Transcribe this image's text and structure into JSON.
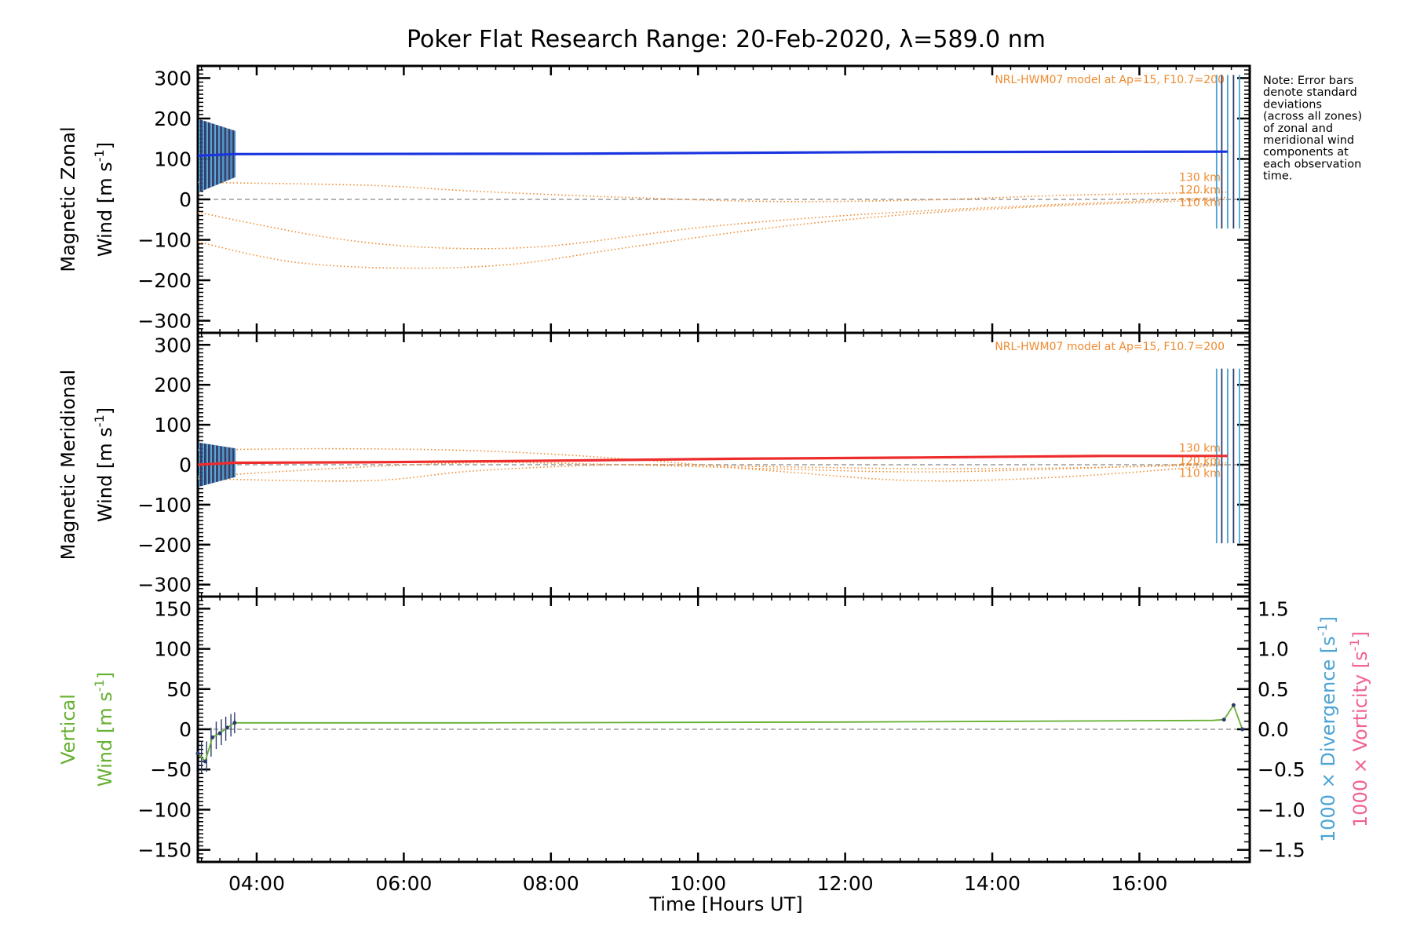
{
  "title": "Poker Flat Research Range: 20-Feb-2020, λ=589.0 nm",
  "colors": {
    "zonal": "#1a35e0",
    "meridional": "#ee2c2c",
    "vertical": "#66b032",
    "model": "#ee8a2e",
    "divergence": "#4aa3d4",
    "vorticity": "#f06292",
    "zero_line": "#888888",
    "error_bars": "#2b3b6b"
  },
  "note_lines": [
    "Note: Error bars",
    "denote standard",
    "deviations",
    "(across all zones)",
    "of zonal and",
    "meridional wind",
    "components at",
    "each observation",
    "time."
  ],
  "x_axis": {
    "label": "Time [Hours UT]",
    "range_hours": [
      3.2,
      17.5
    ],
    "tick_hours": [
      4,
      6,
      8,
      10,
      12,
      14,
      16
    ],
    "tick_labels": [
      "04:00",
      "06:00",
      "08:00",
      "10:00",
      "12:00",
      "14:00",
      "16:00"
    ]
  },
  "chart_data": [
    {
      "type": "line",
      "panel": "zonal",
      "ylabel_line1": "Magnetic Zonal",
      "ylabel_line2": "Wind [m s",
      "ylabel_sup": "-1",
      "ylabel_close": "]",
      "ylim": [
        -330,
        330
      ],
      "yticks": [
        -300,
        -200,
        -100,
        0,
        100,
        200,
        300
      ],
      "ytick_labels": [
        "−300",
        "−200",
        "−100",
        "0",
        "100",
        "200",
        "300"
      ],
      "model_label": "NRL-HWM07 model at Ap=15, F10.7=200",
      "model_alt_labels": [
        "130 km",
        "120 km",
        "110 km"
      ],
      "series": [
        {
          "x": [
            3.2,
            3.7,
            8.2,
            12.7,
            17.2
          ],
          "y": [
            108,
            112,
            113,
            117,
            118
          ]
        }
      ],
      "model_series": [
        {
          "x": [
            3.2,
            5.5,
            7.0,
            9.0,
            11.0,
            13.0,
            15.0,
            17.2
          ],
          "y": [
            42,
            35,
            20,
            5,
            -5,
            -2,
            10,
            18
          ]
        },
        {
          "x": [
            3.2,
            5.0,
            6.5,
            8.0,
            10.0,
            12.0,
            14.0,
            17.2
          ],
          "y": [
            -32,
            -95,
            -120,
            -115,
            -70,
            -40,
            -20,
            5
          ]
        },
        {
          "x": [
            3.2,
            4.5,
            6.0,
            7.5,
            9.0,
            11.0,
            13.0,
            15.0,
            17.2
          ],
          "y": [
            -105,
            -155,
            -170,
            -160,
            -120,
            -70,
            -35,
            -15,
            0
          ]
        }
      ]
    },
    {
      "type": "line",
      "panel": "meridional",
      "ylabel_line1": "Magnetic Meridional",
      "ylabel_line2": "Wind [m s",
      "ylabel_sup": "-1",
      "ylabel_close": "]",
      "ylim": [
        -330,
        330
      ],
      "yticks": [
        -300,
        -200,
        -100,
        0,
        100,
        200,
        300
      ],
      "ytick_labels": [
        "−300",
        "−200",
        "−100",
        "0",
        "100",
        "200",
        "300"
      ],
      "model_label": "NRL-HWM07 model at Ap=15, F10.7=200",
      "model_alt_labels": [
        "130 km",
        "120 km",
        "110 km"
      ],
      "series": [
        {
          "x": [
            3.2,
            3.7,
            5.5,
            8.0,
            10.5,
            13.0,
            15.5,
            17.2
          ],
          "y": [
            0,
            5,
            6,
            10,
            15,
            18,
            22,
            22
          ]
        }
      ],
      "model_series": [
        {
          "x": [
            3.2,
            5.0,
            7.0,
            9.0,
            11.0,
            13.0,
            15.0,
            17.2
          ],
          "y": [
            37,
            40,
            35,
            15,
            -15,
            -40,
            -30,
            0
          ]
        },
        {
          "x": [
            3.2,
            5.0,
            7.0,
            9.0,
            11.0,
            13.0,
            15.0,
            17.2
          ],
          "y": [
            -30,
            -10,
            5,
            0,
            -10,
            -18,
            -10,
            5
          ]
        },
        {
          "x": [
            3.2,
            5.5,
            7.0,
            9.0,
            11.0,
            13.0,
            15.0,
            17.2
          ],
          "y": [
            -35,
            -40,
            -15,
            0,
            -5,
            -10,
            -8,
            0
          ]
        }
      ]
    },
    {
      "type": "line",
      "panel": "vertical",
      "ylabel_line1": "Vertical",
      "ylabel_line2": "Wind [m s",
      "ylabel_sup": "-1",
      "ylabel_close": "]",
      "ylim": [
        -165,
        165
      ],
      "yticks": [
        -150,
        -100,
        -50,
        0,
        50,
        100,
        150
      ],
      "ytick_labels": [
        "−150",
        "−100",
        "−50",
        "0",
        "50",
        "100",
        "150"
      ],
      "y2lim": [
        -1.65,
        1.65
      ],
      "y2ticks": [
        -1.5,
        -1.0,
        -0.5,
        0.0,
        0.5,
        1.0,
        1.5
      ],
      "y2tick_labels": [
        "−1.5",
        "−1.0",
        "−0.5",
        "0.0",
        "0.5",
        "1.0",
        "1.5"
      ],
      "y2label_div": "1000 × Divergence [s",
      "y2label_vor": "1000 × Vorticity [s",
      "y2label_sup": "-1",
      "y2label_close": "]",
      "series": [
        {
          "x": [
            3.2,
            3.3,
            3.4,
            3.5,
            3.6,
            3.7,
            7.0,
            12.0,
            17.0,
            17.15,
            17.28,
            17.4
          ],
          "y": [
            -30,
            -40,
            -10,
            -5,
            2,
            8,
            8,
            9,
            11,
            12,
            30,
            0
          ]
        }
      ]
    }
  ]
}
